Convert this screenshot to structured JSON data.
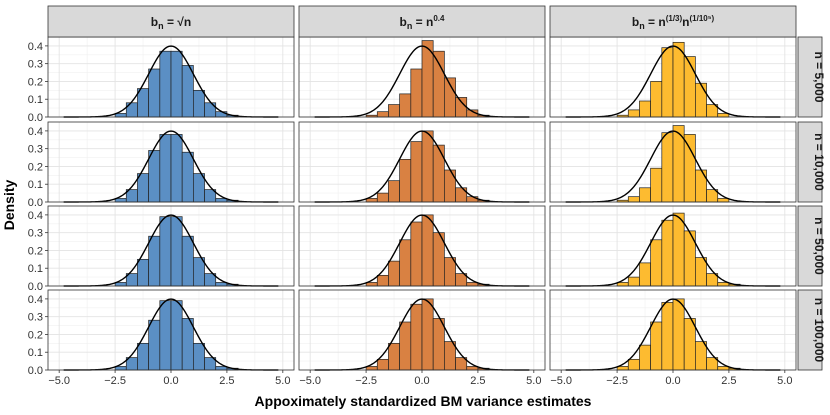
{
  "chart_data": {
    "type": "histogram-grid",
    "ylabel": "Density",
    "xlabel": "Appoximately standardized BM variance estimates",
    "xlim": [
      -5.5,
      5.5
    ],
    "ylim": [
      0,
      0.45
    ],
    "x_ticks": [
      -5.0,
      -2.5,
      0.0,
      2.5,
      5.0
    ],
    "x_tick_labels": [
      "−5.0",
      "−2.5",
      "0.0",
      "2.5",
      "5.0"
    ],
    "y_ticks": [
      0.0,
      0.1,
      0.2,
      0.3,
      0.4
    ],
    "y_tick_labels": [
      "0.0",
      "0.1",
      "0.2",
      "0.3",
      "0.4"
    ],
    "bin_width": 0.5,
    "bin_starts": [
      -2.5,
      -2.0,
      -1.5,
      -1.0,
      -0.5,
      0.0,
      0.5,
      1.0,
      1.5,
      2.0,
      2.5
    ],
    "reference_curve": "Standard normal density",
    "columns": [
      {
        "label_html": "b<tspan font-size=\"9\" dy=\"3\">n</tspan><tspan dy=\"-3\"> = √n</tspan>",
        "fill": "#5b8fc4",
        "key": "sqrt"
      },
      {
        "label_html": "b<tspan font-size=\"9\" dy=\"3\">n</tspan><tspan dy=\"-3\"> = n</tspan><tspan font-size=\"8\" dy=\"-5\">0.4</tspan>",
        "fill": "#d98142",
        "key": "n04"
      },
      {
        "label_html": "b<tspan font-size=\"9\" dy=\"3\">n</tspan><tspan dy=\"-3\"> = n</tspan><tspan font-size=\"8\" dy=\"-5\">(1/3)</tspan><tspan dy=\"5\">n</tspan><tspan font-size=\"8\" dy=\"-5\">(1/10⁵)</tspan>",
        "fill": "#fdbb30",
        "key": "n13"
      }
    ],
    "rows": [
      {
        "label": "n = 5,000"
      },
      {
        "label": "n = 10,000"
      },
      {
        "label": "n = 50,000"
      },
      {
        "label": "n = 100,000"
      }
    ],
    "densities": [
      [
        [
          0.02,
          0.08,
          0.16,
          0.27,
          0.37,
          0.37,
          0.29,
          0.15,
          0.08,
          0.03,
          0.01
        ],
        [
          0.01,
          0.03,
          0.07,
          0.13,
          0.27,
          0.43,
          0.37,
          0.22,
          0.11,
          0.04,
          0.01
        ],
        [
          0.01,
          0.04,
          0.09,
          0.2,
          0.39,
          0.42,
          0.34,
          0.19,
          0.07,
          0.02,
          0.0
        ]
      ],
      [
        [
          0.02,
          0.07,
          0.16,
          0.29,
          0.38,
          0.38,
          0.28,
          0.16,
          0.07,
          0.02,
          0.01
        ],
        [
          0.02,
          0.05,
          0.12,
          0.24,
          0.34,
          0.4,
          0.32,
          0.18,
          0.08,
          0.03,
          0.01
        ],
        [
          0.01,
          0.03,
          0.08,
          0.19,
          0.39,
          0.43,
          0.38,
          0.18,
          0.07,
          0.02,
          0.0
        ]
      ],
      [
        [
          0.02,
          0.07,
          0.15,
          0.28,
          0.39,
          0.39,
          0.28,
          0.16,
          0.07,
          0.02,
          0.01
        ],
        [
          0.02,
          0.06,
          0.14,
          0.26,
          0.36,
          0.4,
          0.3,
          0.16,
          0.07,
          0.02,
          0.01
        ],
        [
          0.02,
          0.05,
          0.13,
          0.26,
          0.37,
          0.41,
          0.31,
          0.16,
          0.07,
          0.02,
          0.01
        ]
      ],
      [
        [
          0.02,
          0.07,
          0.15,
          0.28,
          0.39,
          0.39,
          0.29,
          0.15,
          0.07,
          0.02,
          0.01
        ],
        [
          0.02,
          0.06,
          0.15,
          0.27,
          0.37,
          0.4,
          0.29,
          0.16,
          0.07,
          0.02,
          0.01
        ],
        [
          0.02,
          0.06,
          0.14,
          0.27,
          0.38,
          0.4,
          0.29,
          0.16,
          0.07,
          0.02,
          0.01
        ]
      ]
    ]
  }
}
